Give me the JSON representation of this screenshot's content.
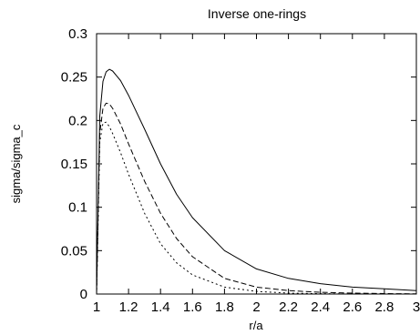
{
  "chart_data": {
    "type": "line",
    "title": "Inverse one-rings",
    "xlabel": "r/a",
    "ylabel": "sigma/sigma_c",
    "xlim": [
      1,
      3
    ],
    "ylim": [
      0,
      0.3
    ],
    "xticks": [
      "1",
      "1.2",
      "1.4",
      "1.6",
      "1.8",
      "2",
      "2.2",
      "2.4",
      "2.6",
      "2.8",
      "3"
    ],
    "yticks": [
      "0",
      "0.05",
      "0.1",
      "0.15",
      "0.2",
      "0.25",
      "0.3"
    ],
    "grid": false,
    "legend": "none",
    "series": [
      {
        "line_style": "solid",
        "x": [
          1.0,
          1.02,
          1.04,
          1.06,
          1.08,
          1.1,
          1.15,
          1.2,
          1.3,
          1.4,
          1.5,
          1.6,
          1.8,
          2.0,
          2.2,
          2.4,
          2.6,
          2.8,
          3.0
        ],
        "y": [
          0.0,
          0.205,
          0.245,
          0.256,
          0.259,
          0.257,
          0.246,
          0.229,
          0.19,
          0.15,
          0.115,
          0.088,
          0.05,
          0.029,
          0.018,
          0.012,
          0.008,
          0.006,
          0.004
        ]
      },
      {
        "line_style": "dashed",
        "x": [
          1.0,
          1.02,
          1.04,
          1.06,
          1.08,
          1.1,
          1.15,
          1.2,
          1.3,
          1.4,
          1.5,
          1.6,
          1.8,
          2.0,
          2.2,
          2.4,
          2.6,
          2.8,
          3.0
        ],
        "y": [
          0.0,
          0.185,
          0.214,
          0.22,
          0.219,
          0.214,
          0.196,
          0.173,
          0.13,
          0.093,
          0.064,
          0.043,
          0.018,
          0.008,
          0.004,
          0.002,
          0.001,
          0.0005,
          0.0002
        ]
      },
      {
        "line_style": "dotted",
        "x": [
          1.0,
          1.02,
          1.04,
          1.06,
          1.08,
          1.1,
          1.15,
          1.2,
          1.3,
          1.4,
          1.5,
          1.6,
          1.8,
          2.0,
          2.2,
          2.4,
          2.6,
          2.8,
          3.0
        ],
        "y": [
          0.0,
          0.175,
          0.197,
          0.198,
          0.193,
          0.185,
          0.163,
          0.138,
          0.093,
          0.058,
          0.036,
          0.022,
          0.008,
          0.003,
          0.001,
          0.0004,
          0.0001,
          0.0,
          0.0
        ]
      }
    ]
  }
}
